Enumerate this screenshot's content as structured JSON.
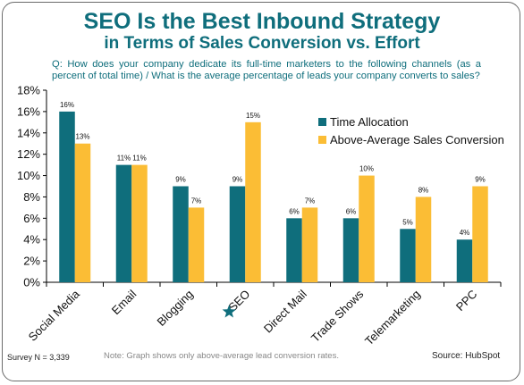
{
  "title": "SEO Is the Best Inbound Strategy",
  "subtitle": "in Terms of Sales Conversion vs. Effort",
  "question": "Q: How does your company dedicate its full-time marketers to the following channels (as a percent of total time) / What is the average percentage of leads your company converts to sales?",
  "footer": {
    "survey": "Survey N = 3,339",
    "note": "Note: Graph shows only above-average lead conversion rates.",
    "source": "Source: HubSpot"
  },
  "colors": {
    "time": "#0f6e7c",
    "conversion": "#fbbd35",
    "axis": "#000000",
    "accent_title": "#0f6e7c"
  },
  "highlight_icon": "star-icon",
  "chart_data": {
    "type": "bar",
    "categories": [
      "Social Media",
      "Email",
      "Blogging",
      "SEO",
      "Direct Mail",
      "Trade Shows",
      "Telemarketing",
      "PPC"
    ],
    "highlighted_category": "SEO",
    "series": [
      {
        "name": "Time Allocation",
        "values": [
          16,
          11,
          9,
          9,
          6,
          6,
          5,
          4
        ]
      },
      {
        "name": "Above-Average Sales Conversion",
        "values": [
          13,
          11,
          7,
          15,
          7,
          10,
          8,
          9
        ]
      }
    ],
    "data_labels": [
      [
        "16%",
        "11%",
        "9%",
        "9%",
        "6%",
        "6%",
        "5%",
        "4%"
      ],
      [
        "13%",
        "11%",
        "7%",
        "15%",
        "7%",
        "10%",
        "8%",
        "9%"
      ]
    ],
    "yticks": [
      "0%",
      "2%",
      "4%",
      "6%",
      "8%",
      "10%",
      "12%",
      "14%",
      "16%",
      "18%"
    ],
    "ylim": [
      0,
      18
    ],
    "legend_position": "top-right",
    "grid": false
  }
}
